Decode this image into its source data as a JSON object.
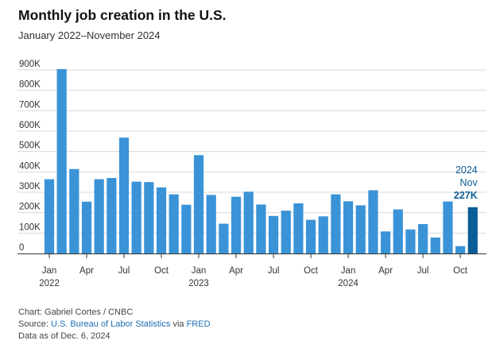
{
  "title": "Monthly job creation in the U.S.",
  "subtitle": "January 2022–November 2024",
  "colors": {
    "bar": "#3a93d7",
    "highlight": "#0b5d96",
    "grid": "#d8d8d8",
    "axis": "#333333",
    "link": "#1f6fb2"
  },
  "chart_data": {
    "type": "bar",
    "categories": [
      "Jan 2022",
      "Feb 2022",
      "Mar 2022",
      "Apr 2022",
      "May 2022",
      "Jun 2022",
      "Jul 2022",
      "Aug 2022",
      "Sep 2022",
      "Oct 2022",
      "Nov 2022",
      "Dec 2022",
      "Jan 2023",
      "Feb 2023",
      "Mar 2023",
      "Apr 2023",
      "May 2023",
      "Jun 2023",
      "Jul 2023",
      "Aug 2023",
      "Sep 2023",
      "Oct 2023",
      "Nov 2023",
      "Dec 2023",
      "Jan 2024",
      "Feb 2024",
      "Mar 2024",
      "Apr 2024",
      "May 2024",
      "Jun 2024",
      "Jul 2024",
      "Aug 2024",
      "Sep 2024",
      "Oct 2024",
      "Nov 2024"
    ],
    "values": [
      364000,
      904000,
      414000,
      254000,
      364000,
      370000,
      568000,
      352000,
      350000,
      324000,
      290000,
      239000,
      482000,
      287000,
      146000,
      278000,
      303000,
      240000,
      184000,
      210000,
      246000,
      165000,
      182000,
      290000,
      256000,
      236000,
      310000,
      108000,
      216000,
      118000,
      144000,
      78000,
      255000,
      36000,
      227000
    ],
    "ylim": [
      0,
      900000
    ],
    "yticks": [
      0,
      100000,
      200000,
      300000,
      400000,
      500000,
      600000,
      700000,
      800000,
      900000
    ],
    "ytick_labels": [
      "0",
      "100K",
      "200K",
      "300K",
      "400K",
      "500K",
      "600K",
      "700K",
      "800K",
      "900K"
    ],
    "xticks": [
      {
        "index": 0,
        "label": "Jan",
        "year": "2022"
      },
      {
        "index": 3,
        "label": "Apr"
      },
      {
        "index": 6,
        "label": "Jul"
      },
      {
        "index": 9,
        "label": "Oct"
      },
      {
        "index": 12,
        "label": "Jan",
        "year": "2023"
      },
      {
        "index": 15,
        "label": "Apr"
      },
      {
        "index": 18,
        "label": "Jul"
      },
      {
        "index": 21,
        "label": "Oct"
      },
      {
        "index": 24,
        "label": "Jan",
        "year": "2024"
      },
      {
        "index": 27,
        "label": "Apr"
      },
      {
        "index": 30,
        "label": "Jul"
      },
      {
        "index": 33,
        "label": "Oct"
      }
    ],
    "highlight_index": 34,
    "annotation": {
      "line1": "2024",
      "line2": "Nov",
      "value": "227K"
    },
    "grid": true
  },
  "footer": {
    "credit": "Chart: Gabriel Cortes / CNBC",
    "source_prefix": "Source: ",
    "source_link1": "U.S. Bureau of Labor Statistics",
    "source_via": " via ",
    "source_link2": "FRED",
    "asof": "Data as of Dec. 6, 2024"
  }
}
